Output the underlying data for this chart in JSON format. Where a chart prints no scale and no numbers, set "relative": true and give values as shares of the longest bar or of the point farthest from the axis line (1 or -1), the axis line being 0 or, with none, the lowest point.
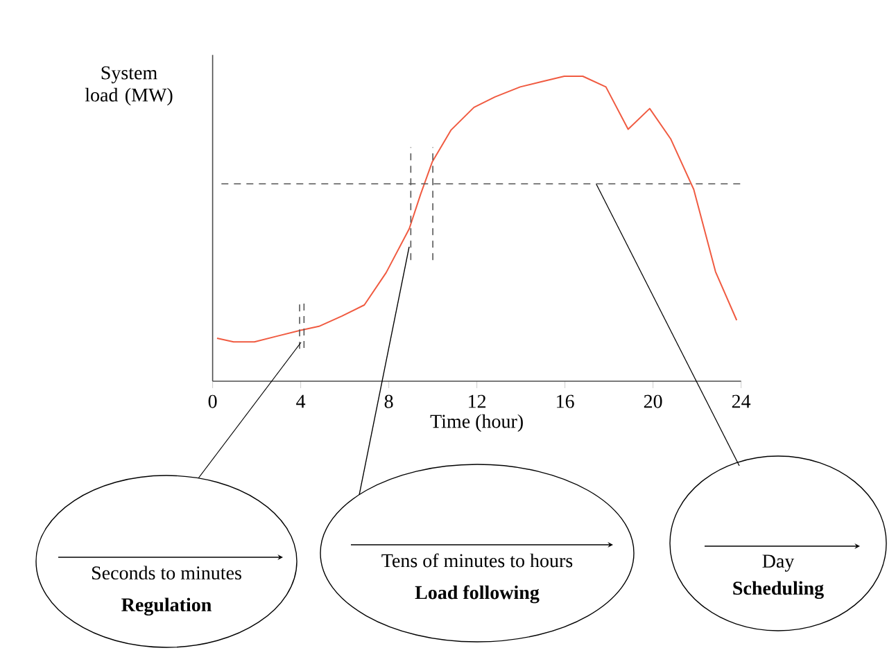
{
  "chart_data": {
    "type": "line",
    "relative": true,
    "xlabel": "Time (hour)",
    "ylabel": "System load (MW)",
    "xlim": [
      0,
      24
    ],
    "xticks": [
      0,
      4,
      8,
      12,
      16,
      20,
      24
    ],
    "series": [
      {
        "color": "#f05a40",
        "x": [
          0.2,
          0.95,
          1.9,
          2.94,
          4.0,
          4.83,
          5.88,
          6.89,
          7.88,
          8.93,
          9.45,
          9.98,
          10.82,
          11.87,
          12.82,
          13.97,
          14.92,
          15.97,
          16.81,
          17.86,
          18.87,
          19.85,
          20.8,
          21.85,
          22.84,
          23.8
        ],
        "values": [
          0.141,
          0.129,
          0.129,
          0.148,
          0.167,
          0.18,
          0.214,
          0.25,
          0.356,
          0.5,
          0.614,
          0.72,
          0.823,
          0.898,
          0.932,
          0.965,
          0.982,
          1,
          1,
          0.965,
          0.826,
          0.894,
          0.795,
          0.629,
          0.359,
          0.2
        ]
      }
    ],
    "ref_lines": [
      {
        "axis": "y",
        "value": 0.647,
        "color": "#555555",
        "line_style": "dashed"
      },
      {
        "axis": "x",
        "value": 9,
        "color": "#555555",
        "line_style": "dashed"
      },
      {
        "axis": "x",
        "value": 10,
        "color": "#555555",
        "line_style": "dashed"
      },
      {
        "axis": "x",
        "value": 3.95,
        "color": "#555555",
        "line_style": "dashed"
      },
      {
        "axis": "x",
        "value": 4.15,
        "color": "#555555",
        "line_style": "dashed"
      }
    ],
    "annotations": [
      "Seconds to minutes",
      "Regulation",
      "Tens of minutes to hours",
      "Load following",
      "Day",
      "Scheduling"
    ],
    "marker": "none"
  }
}
